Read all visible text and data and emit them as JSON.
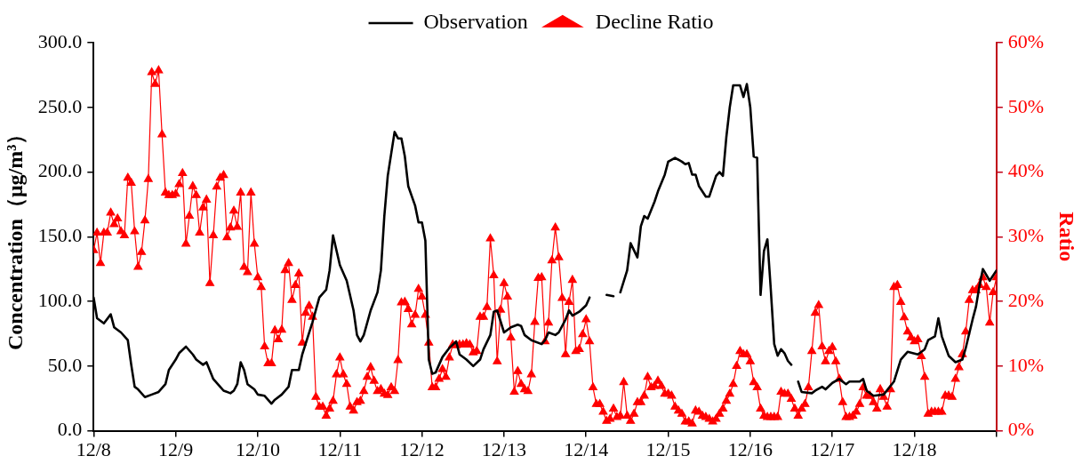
{
  "chart_data": {
    "type": "line",
    "ylabel": "Concentration（μg/m³）",
    "y2label": "Ratio",
    "legend": "top",
    "line_style": "solid",
    "xlim": [
      "--12-08T00:00",
      "--12-19T00:00"
    ],
    "xticks": [
      {
        "value": "--12-08",
        "label": "12/8"
      },
      {
        "value": "--12-09",
        "label": "12/9"
      },
      {
        "value": "--12-10",
        "label": "12/10"
      },
      {
        "value": "--12-11",
        "label": "12/11"
      },
      {
        "value": "--12-12",
        "label": "12/12"
      },
      {
        "value": "--12-13",
        "label": "12/13"
      },
      {
        "value": "--12-14",
        "label": "12/14"
      },
      {
        "value": "--12-15",
        "label": "12/15"
      },
      {
        "value": "--12-16",
        "label": "12/16"
      },
      {
        "value": "--12-17",
        "label": "12/17"
      },
      {
        "value": "--12-18",
        "label": "12/18"
      },
      {
        "value": "--12-19",
        "label": null
      }
    ],
    "ylim": [
      0,
      300
    ],
    "yticks": [
      {
        "value": 0,
        "label": "0.0"
      },
      {
        "value": 50,
        "label": "50.0"
      },
      {
        "value": 100,
        "label": "100.0"
      },
      {
        "value": 150,
        "label": "150.0"
      },
      {
        "value": 200,
        "label": "200.0"
      },
      {
        "value": 250,
        "label": "250.0"
      },
      {
        "value": 300,
        "label": "300.0"
      }
    ],
    "y2lim": [
      0,
      60
    ],
    "y2ticks": [
      {
        "value": 0,
        "label": "0%"
      },
      {
        "value": 10,
        "label": "10%"
      },
      {
        "value": 20,
        "label": "20%"
      },
      {
        "value": 30,
        "label": "30%"
      },
      {
        "value": 40,
        "label": "40%"
      },
      {
        "value": 50,
        "label": "50%"
      },
      {
        "value": 60,
        "label": "60%"
      }
    ],
    "x": [
      "--12-08T00:00",
      "--12-08T01:00",
      "--12-08T02:00",
      "--12-08T03:00",
      "--12-08T04:00",
      "--12-08T05:00",
      "--12-08T06:00",
      "--12-08T07:00",
      "--12-08T08:00",
      "--12-08T09:00",
      "--12-08T10:00",
      "--12-08T11:00",
      "--12-08T12:00",
      "--12-08T13:00",
      "--12-08T14:00",
      "--12-08T15:00",
      "--12-08T16:00",
      "--12-08T17:00",
      "--12-08T18:00",
      "--12-08T19:00",
      "--12-08T20:00",
      "--12-08T21:00",
      "--12-08T22:00",
      "--12-08T23:00",
      "--12-09T00:00",
      "--12-09T01:00",
      "--12-09T02:00",
      "--12-09T03:00",
      "--12-09T04:00",
      "--12-09T05:00",
      "--12-09T06:00",
      "--12-09T07:00",
      "--12-09T08:00",
      "--12-09T09:00",
      "--12-09T10:00",
      "--12-09T11:00",
      "--12-09T12:00",
      "--12-09T13:00",
      "--12-09T14:00",
      "--12-09T15:00",
      "--12-09T16:00",
      "--12-09T17:00",
      "--12-09T18:00",
      "--12-09T19:00",
      "--12-09T20:00",
      "--12-09T21:00",
      "--12-09T22:00",
      "--12-09T23:00",
      "--12-10T00:00",
      "--12-10T01:00",
      "--12-10T02:00",
      "--12-10T03:00",
      "--12-10T04:00",
      "--12-10T05:00",
      "--12-10T06:00",
      "--12-10T07:00",
      "--12-10T08:00",
      "--12-10T09:00",
      "--12-10T10:00",
      "--12-10T11:00",
      "--12-10T12:00",
      "--12-10T13:00",
      "--12-10T14:00",
      "--12-10T15:00",
      "--12-10T16:00",
      "--12-10T17:00",
      "--12-10T18:00",
      "--12-10T19:00",
      "--12-10T20:00",
      "--12-10T21:00",
      "--12-10T22:00",
      "--12-10T23:00",
      "--12-11T00:00",
      "--12-11T01:00",
      "--12-11T02:00",
      "--12-11T03:00",
      "--12-11T04:00",
      "--12-11T05:00",
      "--12-11T06:00",
      "--12-11T07:00",
      "--12-11T08:00",
      "--12-11T09:00",
      "--12-11T10:00",
      "--12-11T11:00",
      "--12-11T12:00",
      "--12-11T13:00",
      "--12-11T14:00",
      "--12-11T15:00",
      "--12-11T16:00",
      "--12-11T17:00",
      "--12-11T18:00",
      "--12-11T19:00",
      "--12-11T20:00",
      "--12-11T21:00",
      "--12-11T22:00",
      "--12-11T23:00",
      "--12-12T00:00",
      "--12-12T01:00",
      "--12-12T02:00",
      "--12-12T03:00",
      "--12-12T04:00",
      "--12-12T05:00",
      "--12-12T06:00",
      "--12-12T07:00",
      "--12-12T08:00",
      "--12-12T09:00",
      "--12-12T10:00",
      "--12-12T11:00",
      "--12-12T12:00",
      "--12-12T13:00",
      "--12-12T14:00",
      "--12-12T15:00",
      "--12-12T16:00",
      "--12-12T17:00",
      "--12-12T18:00",
      "--12-12T19:00",
      "--12-12T20:00",
      "--12-12T21:00",
      "--12-12T22:00",
      "--12-12T23:00",
      "--12-13T00:00",
      "--12-13T01:00",
      "--12-13T02:00",
      "--12-13T03:00",
      "--12-13T04:00",
      "--12-13T05:00",
      "--12-13T06:00",
      "--12-13T07:00",
      "--12-13T08:00",
      "--12-13T09:00",
      "--12-13T10:00",
      "--12-13T11:00",
      "--12-13T12:00",
      "--12-13T13:00",
      "--12-13T14:00",
      "--12-13T15:00",
      "--12-13T16:00",
      "--12-13T17:00",
      "--12-13T18:00",
      "--12-13T19:00",
      "--12-13T20:00",
      "--12-13T21:00",
      "--12-13T22:00",
      "--12-13T23:00",
      "--12-14T00:00",
      "--12-14T01:00",
      "--12-14T02:00",
      "--12-14T03:00",
      "--12-14T04:00",
      "--12-14T05:00",
      "--12-14T06:00",
      "--12-14T07:00",
      "--12-14T08:00",
      "--12-14T09:00",
      "--12-14T10:00",
      "--12-14T11:00",
      "--12-14T12:00",
      "--12-14T13:00",
      "--12-14T14:00",
      "--12-14T15:00",
      "--12-14T16:00",
      "--12-14T17:00",
      "--12-14T18:00",
      "--12-14T19:00",
      "--12-14T20:00",
      "--12-14T21:00",
      "--12-14T22:00",
      "--12-14T23:00",
      "--12-15T00:00",
      "--12-15T01:00",
      "--12-15T02:00",
      "--12-15T03:00",
      "--12-15T04:00",
      "--12-15T05:00",
      "--12-15T06:00",
      "--12-15T07:00",
      "--12-15T08:00",
      "--12-15T09:00",
      "--12-15T10:00",
      "--12-15T11:00",
      "--12-15T12:00",
      "--12-15T13:00",
      "--12-15T14:00",
      "--12-15T15:00",
      "--12-15T16:00",
      "--12-15T17:00",
      "--12-15T18:00",
      "--12-15T19:00",
      "--12-15T20:00",
      "--12-15T21:00",
      "--12-15T22:00",
      "--12-15T23:00",
      "--12-16T00:00",
      "--12-16T01:00",
      "--12-16T02:00",
      "--12-16T03:00",
      "--12-16T04:00",
      "--12-16T05:00",
      "--12-16T06:00",
      "--12-16T07:00",
      "--12-16T08:00",
      "--12-16T09:00",
      "--12-16T10:00",
      "--12-16T11:00",
      "--12-16T12:00",
      "--12-16T13:00",
      "--12-16T14:00",
      "--12-16T15:00",
      "--12-16T16:00",
      "--12-16T17:00",
      "--12-16T18:00",
      "--12-16T19:00",
      "--12-16T20:00",
      "--12-16T21:00",
      "--12-16T22:00",
      "--12-16T23:00",
      "--12-17T00:00",
      "--12-17T01:00",
      "--12-17T02:00",
      "--12-17T03:00",
      "--12-17T04:00",
      "--12-17T05:00",
      "--12-17T06:00",
      "--12-17T07:00",
      "--12-17T08:00",
      "--12-17T09:00",
      "--12-17T10:00",
      "--12-17T11:00",
      "--12-17T12:00",
      "--12-17T13:00",
      "--12-17T14:00",
      "--12-17T15:00",
      "--12-17T16:00",
      "--12-17T17:00",
      "--12-17T18:00",
      "--12-17T19:00",
      "--12-17T20:00",
      "--12-17T21:00",
      "--12-17T22:00",
      "--12-17T23:00",
      "--12-18T00:00",
      "--12-18T01:00",
      "--12-18T02:00",
      "--12-18T03:00",
      "--12-18T04:00",
      "--12-18T05:00",
      "--12-18T06:00",
      "--12-18T07:00",
      "--12-18T08:00",
      "--12-18T09:00",
      "--12-18T10:00",
      "--12-18T11:00",
      "--12-18T12:00",
      "--12-18T13:00",
      "--12-18T14:00",
      "--12-18T15:00",
      "--12-18T16:00",
      "--12-18T17:00",
      "--12-18T18:00",
      "--12-18T19:00",
      "--12-18T20:00",
      "--12-18T21:00",
      "--12-18T22:00",
      "--12-18T23:00",
      "--12-19T00:00"
    ],
    "series": [
      {
        "name": "Observation",
        "color": "#000000",
        "marker": "none",
        "x": [
          "--12-08T00:00",
          "--12-08T01:00",
          "--12-08T03:00",
          "--12-08T05:00",
          "--12-08T06:00",
          "--12-08T08:00",
          "--12-08T10:00",
          "--12-08T11:00",
          "--12-08T12:00",
          "--12-08T13:00",
          "--12-08T15:00",
          "--12-08T17:00",
          "--12-08T19:00",
          "--12-08T21:00",
          "--12-08T22:00",
          "--12-09T00:00",
          "--12-09T01:00",
          "--12-09T03:00",
          "--12-09T05:00",
          "--12-09T06:00",
          "--12-09T08:00",
          "--12-09T09:00",
          "--12-09T11:00",
          "--12-09T13:00",
          "--12-09T14:00",
          "--12-09T16:00",
          "--12-09T17:00",
          "--12-09T18:00",
          "--12-09T19:00",
          "--12-09T20:00",
          "--12-09T21:00",
          "--12-09T23:00",
          "--12-10T00:00",
          "--12-10T02:00",
          "--12-10T04:00",
          "--12-10T05:00",
          "--12-10T07:00",
          "--12-10T09:00",
          "--12-10T10:00",
          "--12-10T12:00",
          "--12-10T13:00",
          "--12-10T16:00",
          "--12-10T18:00",
          "--12-10T20:00",
          "--12-10T21:00",
          "--12-10T22:00",
          "--12-11T00:00",
          "--12-11T02:00",
          "--12-11T04:00",
          "--12-11T05:00",
          "--12-11T06:00",
          "--12-11T07:00",
          "--12-11T09:00",
          "--12-11T11:00",
          "--12-11T12:00",
          "--12-11T13:00",
          "--12-11T14:00",
          "--12-11T16:00",
          "--12-11T17:00",
          "--12-11T18:00",
          "--12-11T19:00",
          "--12-11T20:00",
          "--12-11T22:00",
          "--12-11T23:00",
          "--12-12T00:00",
          "--12-12T01:00",
          "--12-12T02:00",
          "--12-12T03:00",
          "--12-12T04:00",
          "--12-12T06:00",
          "--12-12T08:00",
          "--12-12T10:00",
          "--12-12T11:00",
          "--12-12T13:00",
          "--12-12T15:00",
          "--12-12T17:00",
          "--12-12T18:00",
          "--12-12T20:00",
          "--12-12T21:00",
          "--12-12T22:00",
          "--12-13T00:00",
          "--12-13T02:00",
          "--12-13T04:00",
          "--12-13T05:00",
          "--12-13T06:00",
          "--12-13T08:00",
          "--12-13T11:00",
          "--12-13T12:00",
          "--12-13T13:00",
          "--12-13T15:00",
          "--12-13T16:00",
          "--12-13T18:00",
          "--12-13T19:00",
          "--12-13T20:00",
          "--12-13T22:00",
          "--12-14T00:00",
          "--12-14T01:00",
          "--12-14T04:00",
          "--12-14T06:00",
          "--12-14T08:00",
          "--12-14T09:00",
          "--12-14T10:00",
          "--12-14T12:00",
          "--12-14T13:00",
          "--12-14T15:00",
          "--12-14T16:00",
          "--12-14T17:00",
          "--12-14T18:00",
          "--12-14T20:00",
          "--12-14T21:00",
          "--12-14T23:00",
          "--12-15T00:00",
          "--12-15T02:00",
          "--12-15T04:00",
          "--12-15T05:00",
          "--12-15T06:00",
          "--12-15T07:00",
          "--12-15T08:00",
          "--12-15T09:00",
          "--12-15T11:00",
          "--12-15T12:00",
          "--12-15T14:00",
          "--12-15T15:00",
          "--12-15T16:00",
          "--12-15T17:00",
          "--12-15T18:00",
          "--12-15T19:00",
          "--12-15T21:00",
          "--12-15T22:00",
          "--12-15T23:00",
          "--12-16T00:00",
          "--12-16T01:00",
          "--12-16T02:00",
          "--12-16T03:00",
          "--12-16T04:00",
          "--12-16T05:00",
          "--12-16T06:00",
          "--12-16T07:00",
          "--12-16T08:00",
          "--12-16T09:00",
          "--12-16T10:00",
          "--12-16T11:00",
          "--12-16T12:00",
          "--12-16T13:00",
          "--12-16T14:00",
          "--12-16T15:00",
          "--12-16T18:00",
          "--12-16T19:00",
          "--12-16T21:00",
          "--12-16T22:00",
          "--12-17T00:00",
          "--12-17T02:00",
          "--12-17T04:00",
          "--12-17T05:00",
          "--12-17T08:00",
          "--12-17T09:00",
          "--12-17T10:00",
          "--12-17T12:00",
          "--12-17T15:00",
          "--12-17T18:00",
          "--12-17T20:00",
          "--12-17T22:00",
          "--12-18T01:00",
          "--12-18T03:00",
          "--12-18T04:00",
          "--12-18T06:00",
          "--12-18T07:00",
          "--12-18T08:00",
          "--12-18T10:00",
          "--12-18T12:00",
          "--12-18T14:00",
          "--12-18T15:00",
          "--12-18T17:00",
          "--12-18T18:00",
          "--12-18T19:00",
          "--12-18T20:00",
          "--12-18T22:00",
          "--12-19T00:00"
        ],
        "values": [
          103,
          87,
          83,
          90,
          80,
          76,
          70,
          51,
          34,
          32,
          26,
          28,
          30,
          36,
          47,
          55,
          60,
          65,
          59,
          55,
          51,
          53,
          40,
          34,
          31,
          29,
          31,
          36,
          53,
          47,
          36,
          32,
          28,
          27,
          21,
          24,
          28,
          34,
          47,
          47,
          59,
          84,
          103,
          109,
          124,
          151,
          128,
          116,
          93,
          74,
          69,
          74,
          93,
          107,
          124,
          166,
          197,
          231,
          226,
          226,
          212,
          189,
          174,
          161,
          161,
          147,
          55,
          44,
          45,
          57,
          64,
          69,
          59,
          55,
          50,
          55,
          63,
          74,
          92,
          93,
          76,
          80,
          82,
          81,
          74,
          70,
          67,
          70,
          76,
          74,
          76,
          86,
          93,
          89,
          92,
          97,
          103,
          null,
          105,
          104,
          null,
          107,
          124,
          145,
          134,
          158,
          166,
          164,
          177,
          185,
          198,
          208,
          211,
          208,
          206,
          207,
          198,
          198,
          189,
          181,
          181,
          197,
          200,
          197,
          227,
          250,
          267,
          267,
          258,
          268,
          250,
          212,
          211,
          105,
          139,
          148,
          109,
          67,
          58,
          63,
          60,
          54,
          51,
          null,
          38,
          30,
          29,
          31,
          34,
          32,
          37,
          40,
          36,
          38,
          38,
          40,
          31,
          27,
          28,
          38,
          55,
          61,
          59,
          63,
          70,
          73,
          87,
          73,
          58,
          53,
          55,
          64,
          86,
          96,
          112,
          125,
          116,
          124
        ]
      },
      {
        "name": "Decline Ratio",
        "color": "#ff0000",
        "marker": "triangle",
        "axis": "y2",
        "values": [
          27.9,
          30.6,
          25.9,
          30.6,
          30.6,
          33.7,
          31.9,
          32.8,
          30.8,
          30.2,
          39.1,
          38.3,
          30.8,
          25.3,
          27.6,
          32.5,
          38.9,
          55.4,
          53.6,
          55.7,
          45.8,
          36.8,
          36.4,
          36.4,
          36.6,
          38.1,
          39.8,
          28.9,
          33.2,
          37.8,
          36.4,
          30.6,
          34.5,
          35.7,
          22.8,
          30.2,
          37.7,
          39.1,
          39.5,
          29.9,
          31.4,
          34.0,
          31.5,
          36.8,
          25.3,
          24.5,
          36.8,
          28.9,
          23.7,
          22.2,
          13.0,
          10.4,
          10.4,
          15.5,
          14.1,
          15.6,
          24.8,
          25.9,
          20.2,
          22.5,
          24.3,
          13.6,
          18.2,
          19.3,
          17.6,
          5.2,
          3.7,
          3.7,
          2.3,
          3.4,
          4.6,
          8.7,
          11.3,
          8.7,
          7.2,
          3.7,
          3.1,
          4.4,
          4.6,
          6.1,
          8.3,
          9.8,
          7.7,
          6.1,
          6.4,
          5.7,
          5.5,
          6.7,
          6.1,
          10.9,
          19.8,
          19.9,
          18.8,
          16.4,
          17.9,
          21.9,
          20.7,
          17.9,
          13.6,
          6.7,
          6.7,
          8.0,
          9.5,
          8.3,
          11.3,
          13.3,
          13.2,
          13.3,
          13.3,
          13.5,
          13.3,
          12.1,
          12.3,
          17.6,
          17.6,
          19.1,
          29.7,
          24.0,
          10.7,
          18.7,
          22.8,
          20.7,
          14.4,
          6.0,
          9.2,
          7.2,
          6.4,
          6.1,
          8.7,
          16.8,
          23.6,
          23.7,
          13.8,
          16.7,
          26.3,
          31.4,
          26.8,
          20.5,
          11.8,
          19.9,
          23.3,
          12.3,
          12.6,
          14.9,
          17.2,
          13.8,
          6.7,
          4.1,
          4.1,
          2.9,
          1.5,
          1.8,
          3.4,
          2.1,
          2.3,
          7.5,
          2.3,
          1.5,
          2.6,
          4.4,
          4.4,
          5.4,
          8.3,
          6.7,
          6.9,
          7.7,
          6.9,
          5.7,
          5.7,
          5.4,
          3.7,
          3.1,
          2.6,
          1.4,
          1.4,
          1.1,
          3.1,
          2.9,
          2.3,
          2.1,
          1.8,
          1.4,
          1.8,
          2.6,
          3.4,
          4.6,
          5.7,
          7.2,
          10.0,
          12.3,
          11.8,
          11.8,
          10.7,
          7.5,
          6.7,
          3.4,
          2.3,
          2.1,
          2.1,
          2.1,
          2.1,
          6.0,
          5.7,
          5.7,
          4.9,
          3.4,
          2.3,
          3.4,
          4.1,
          6.7,
          12.3,
          18.2,
          19.4,
          13.0,
          10.7,
          12.3,
          12.9,
          10.7,
          8.0,
          4.4,
          2.1,
          2.1,
          2.3,
          2.9,
          4.1,
          6.7,
          5.4,
          5.4,
          4.4,
          3.4,
          6.4,
          5.2,
          3.7,
          6.4,
          22.2,
          22.5,
          19.9,
          17.5,
          15.3,
          14.4,
          13.8,
          14.1,
          11.5,
          8.3,
          2.6,
          2.9,
          2.9,
          2.9,
          2.9,
          5.4,
          5.4,
          5.2,
          8.0,
          9.8,
          11.8,
          15.3,
          20.2,
          21.7,
          21.7,
          22.5,
          23.7,
          22.2,
          16.7,
          21.4,
          23.7
        ]
      }
    ]
  }
}
